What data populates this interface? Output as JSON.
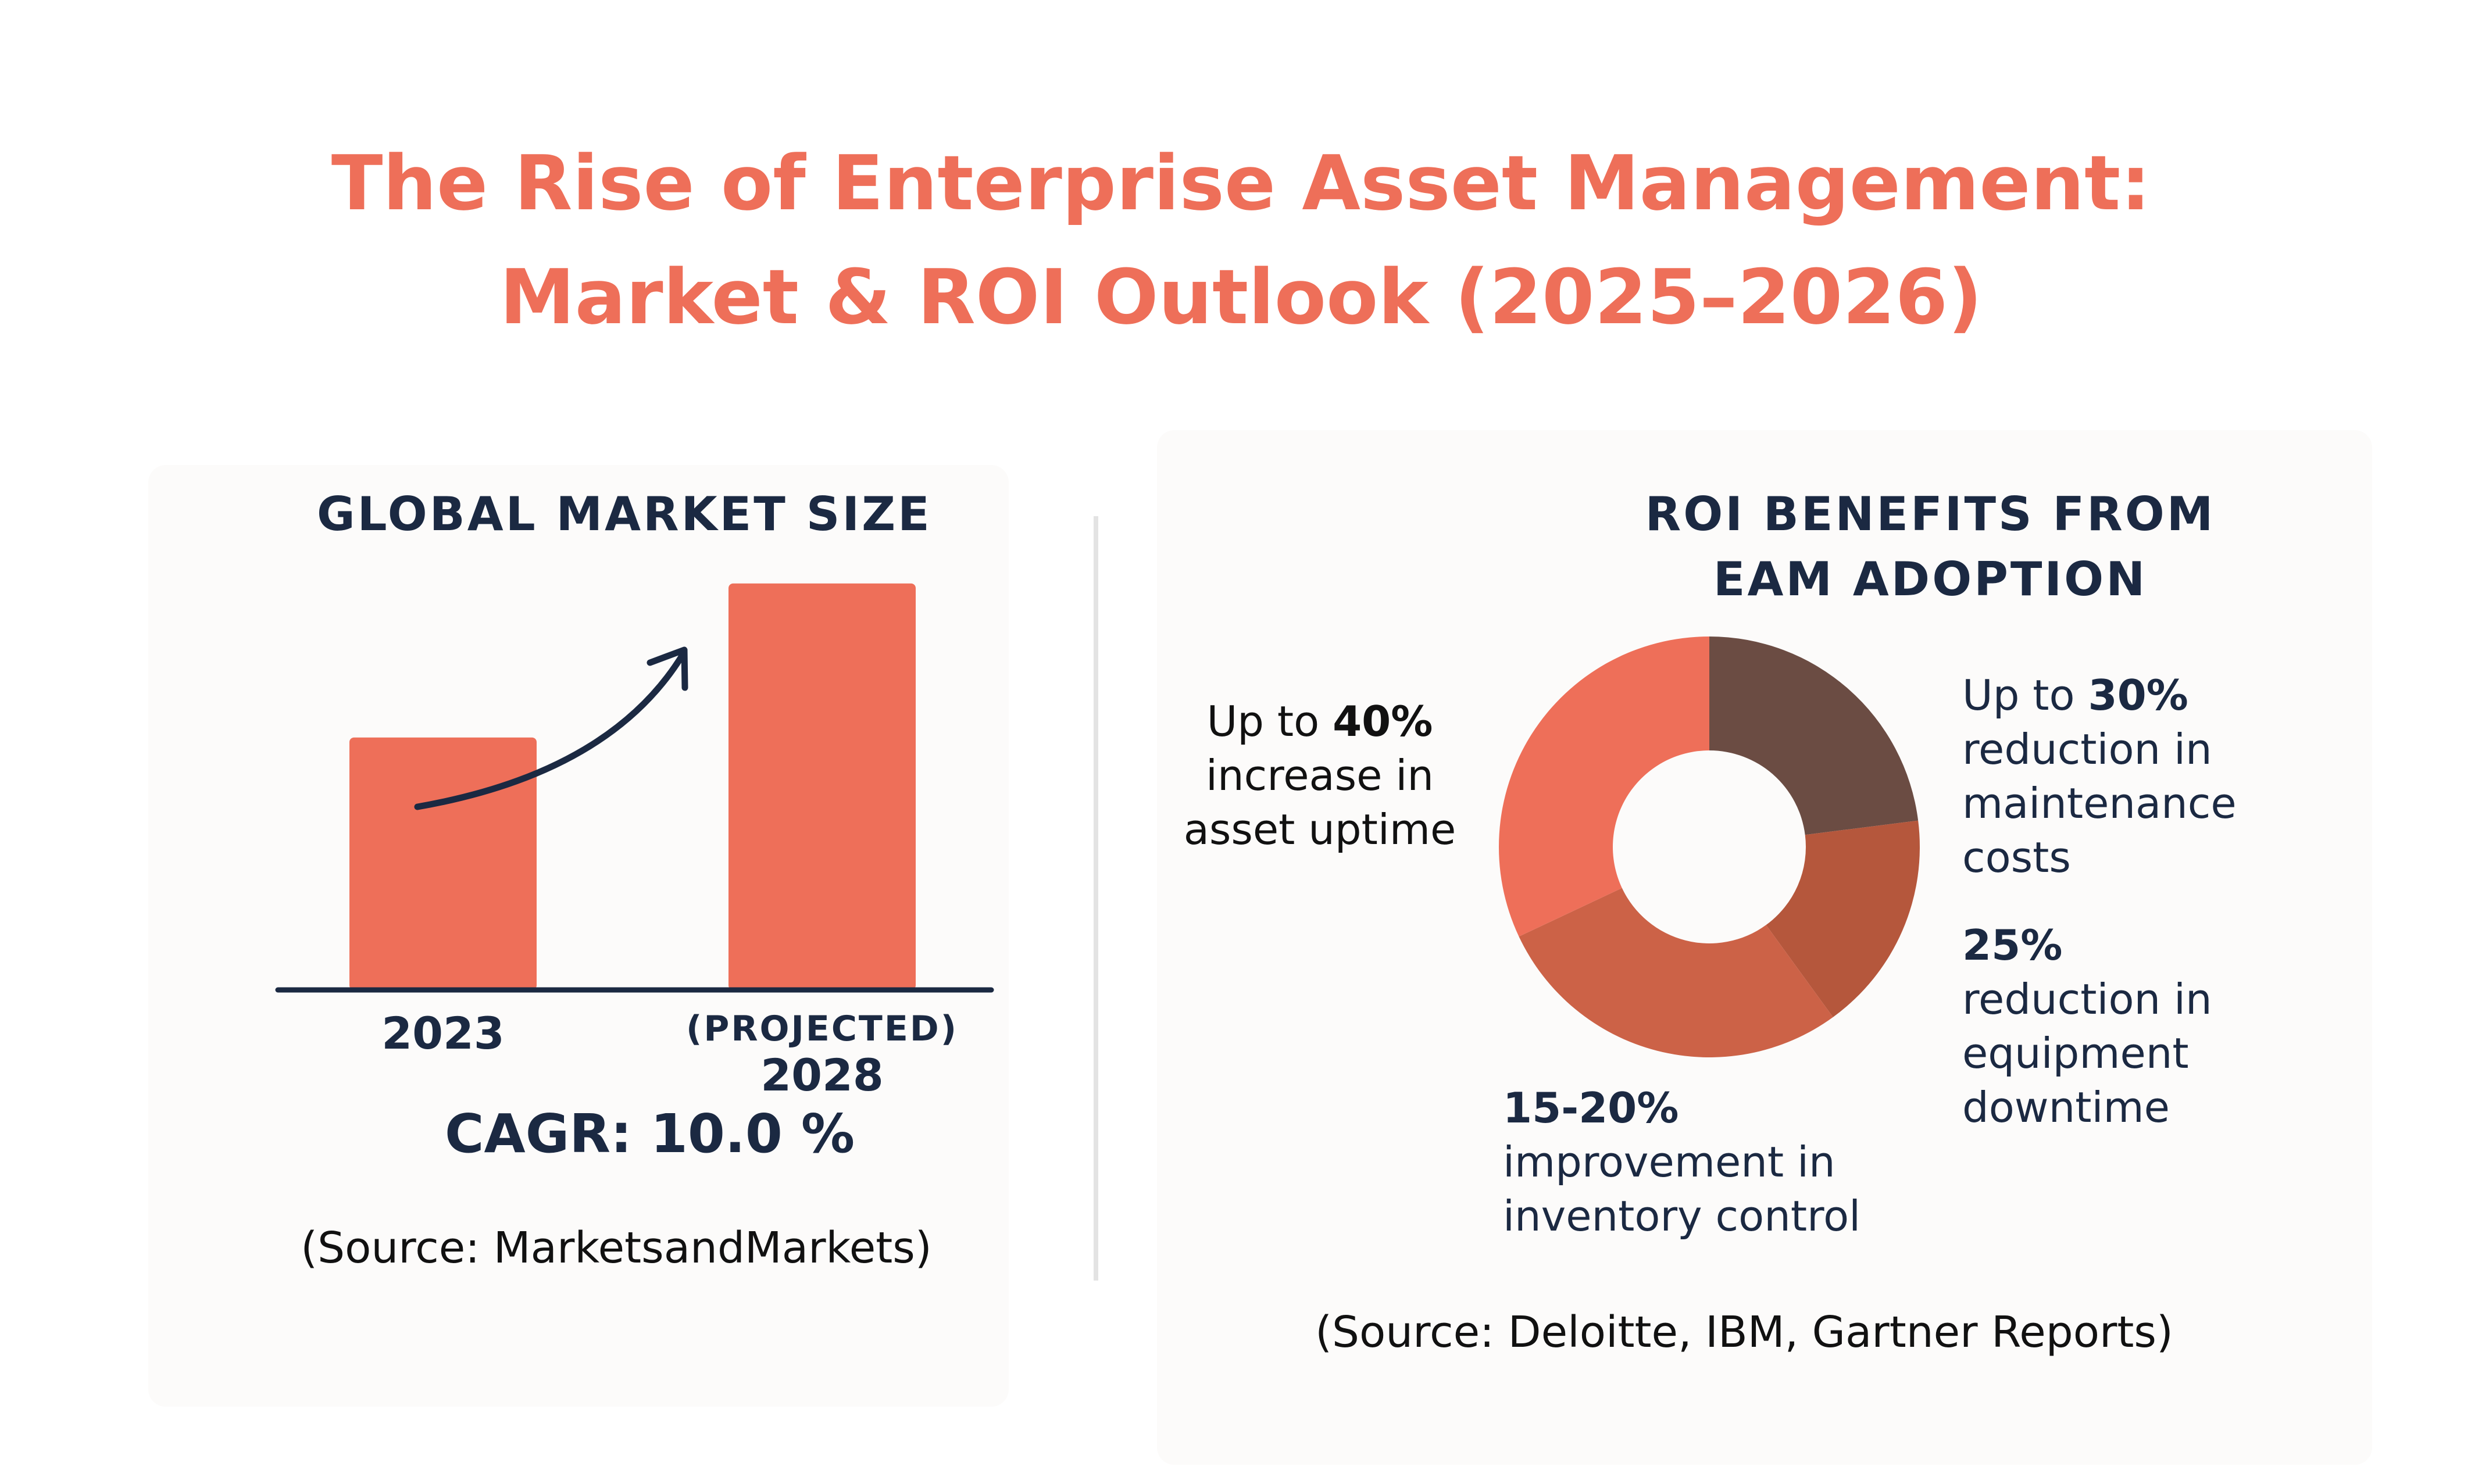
{
  "title": {
    "line1": "The Rise of Enterprise Asset Management:",
    "line2": "Market & ROI Outlook (2025–2026)"
  },
  "colors": {
    "accent": "#ee6f59",
    "navy": "#1b2942",
    "donut_coral": "#ee6f59",
    "donut_dark_brown": "#6b4c43",
    "donut_rust": "#b5573c",
    "donut_terracotta": "#cc6247"
  },
  "market": {
    "heading": "GLOBAL MARKET SIZE",
    "cagr": "CAGR: 10.0 %",
    "source": "(Source: MarketsandMarkets)",
    "icons": [
      "growth-arrow-icon"
    ]
  },
  "roi": {
    "heading_line1": "ROI BENEFITS FROM",
    "heading_line2": "EAM ADOPTION",
    "source": "(Source: Deloitte, IBM, Gartner Reports)",
    "callouts": {
      "uptime": {
        "prefix": "Up to ",
        "value": "40%",
        "line2": "increase in",
        "line3": "asset uptime"
      },
      "maintenance": {
        "prefix": "Up to ",
        "value": "30%",
        "line2": "reduction in",
        "line3": "maintenance",
        "line4": "costs"
      },
      "downtime": {
        "value": "25%",
        "line2": "reduction in",
        "line3": "equipment",
        "line4": "downtime"
      },
      "inventory": {
        "value": "15-20%",
        "line2": "improvement in",
        "line3": "inventory control"
      }
    }
  },
  "chart_data": [
    {
      "type": "bar",
      "title": "GLOBAL MARKET SIZE",
      "categories": [
        "2023",
        "(PROJECTED) 2028"
      ],
      "category_lines": [
        [
          "2023"
        ],
        [
          "(PROJECTED)",
          "2028"
        ]
      ],
      "values": [
        1.0,
        1.61
      ],
      "ylim": [
        0,
        1.75
      ],
      "annotation": "CAGR: 10.0 %",
      "grid": false,
      "legend": "none"
    },
    {
      "type": "pie",
      "donut": true,
      "title": "ROI BENEFITS FROM EAM ADOPTION",
      "slices": [
        {
          "label": "Up to 30% reduction in maintenance costs",
          "value": 23,
          "color": "#6b4c43"
        },
        {
          "label": "25% reduction in equipment downtime",
          "value": 17,
          "color": "#b5573c"
        },
        {
          "label": "15-20% improvement in inventory control",
          "value": 28,
          "color": "#cc6247"
        },
        {
          "label": "Up to 40% increase in asset uptime",
          "value": 32,
          "color": "#ee6f59"
        }
      ],
      "start_angle_deg": 0,
      "legend": "none"
    }
  ]
}
